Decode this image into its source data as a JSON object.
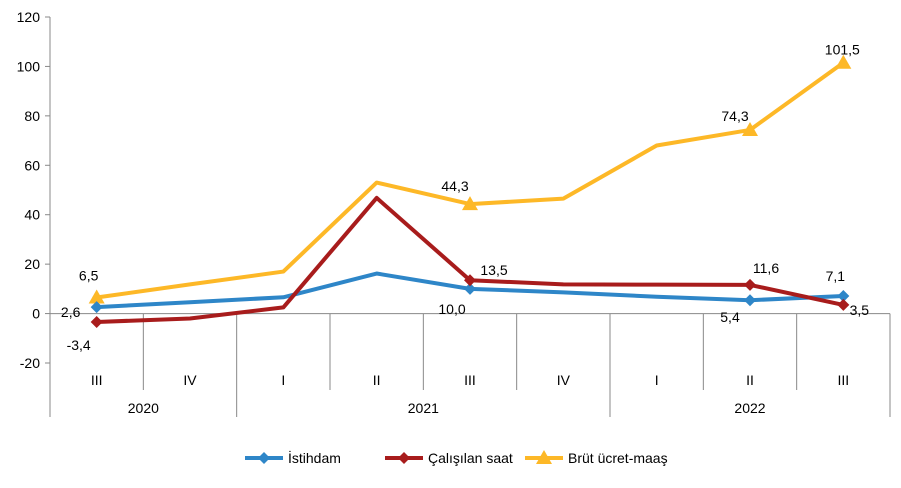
{
  "chart_data": {
    "type": "line",
    "title": "",
    "xlabel": "",
    "ylabel": "",
    "ylim": [
      -20,
      120
    ],
    "yticks": [
      "-20",
      "0",
      "20",
      "40",
      "60",
      "80",
      "100",
      "120"
    ],
    "ytick_values": [
      -20,
      0,
      20,
      40,
      60,
      80,
      100,
      120
    ],
    "categories": [
      "III",
      "IV",
      "I",
      "II",
      "III",
      "IV",
      "I",
      "II",
      "III"
    ],
    "years": [
      {
        "label": "2020",
        "count": 2
      },
      {
        "label": "2021",
        "count": 4
      },
      {
        "label": "2022",
        "count": 3
      }
    ],
    "grid": false,
    "legend_position": "bottom",
    "series": [
      {
        "name": "İstihdam",
        "color": "#2E86C8",
        "marker": "diamond",
        "values": [
          2.6,
          4.6,
          6.6,
          16.2,
          10.0,
          8.6,
          6.8,
          5.4,
          7.1
        ],
        "labels": [
          "2,6",
          null,
          null,
          null,
          "10,0",
          null,
          null,
          "5,4",
          "7,1"
        ]
      },
      {
        "name": "Çalışılan saat",
        "color": "#A81C1C",
        "marker": "diamond",
        "values": [
          -3.4,
          -2.0,
          2.5,
          46.8,
          13.5,
          11.8,
          11.7,
          11.6,
          3.5
        ],
        "labels": [
          "-3,4",
          null,
          null,
          null,
          "13,5",
          null,
          null,
          "11,6",
          "3,5"
        ]
      },
      {
        "name": "Brüt ücret-maaş",
        "color": "#FDB827",
        "marker": "triangle",
        "values": [
          6.5,
          11.8,
          17.0,
          53.0,
          44.3,
          46.5,
          68.0,
          74.3,
          101.5
        ],
        "labels": [
          "6,5",
          null,
          null,
          null,
          "44,3",
          null,
          null,
          "74,3",
          "101,5"
        ]
      }
    ]
  }
}
